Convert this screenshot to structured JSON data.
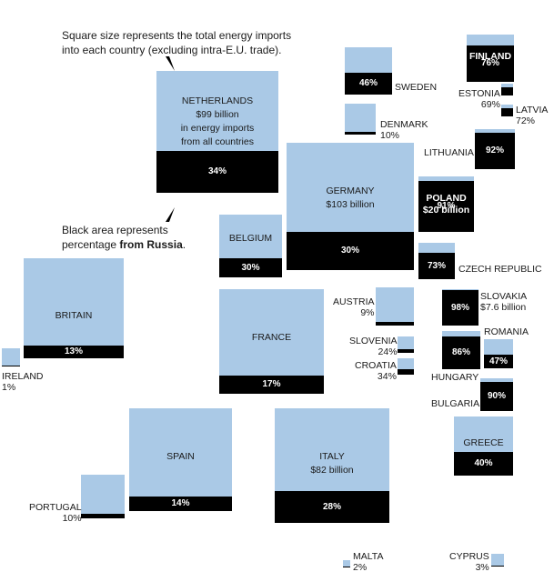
{
  "notes": {
    "size_note_line1": "Square size represents the total energy imports",
    "size_note_line2": "into each country (excluding intra-E.U. trade).",
    "black_note_line1": "Black area represents",
    "black_note_line2_a": "percentage ",
    "black_note_line2_b": "from Russia",
    "black_note_line2_c": "."
  },
  "colors": {
    "square": "#aac9e6",
    "russia": "#000000",
    "text": "#1a1a1a"
  },
  "chart_data": {
    "type": "proportional-squares",
    "size_measure": "total energy imports",
    "fill_measure": "percentage from Russia",
    "countries": [
      {
        "id": "netherlands",
        "name": "NETHERLANDS",
        "value_label": "$99 billion",
        "extra_line1": "in energy imports",
        "extra_line2": "from all countries",
        "pct": 34,
        "pct_label": "34%"
      },
      {
        "id": "germany",
        "name": "GERMANY",
        "value_label": "$103 billion",
        "pct": 30,
        "pct_label": "30%"
      },
      {
        "id": "italy",
        "name": "ITALY",
        "value_label": "$82 billion",
        "pct": 28,
        "pct_label": "28%"
      },
      {
        "id": "france",
        "name": "FRANCE",
        "pct": 17,
        "pct_label": "17%"
      },
      {
        "id": "spain",
        "name": "SPAIN",
        "pct": 14,
        "pct_label": "14%"
      },
      {
        "id": "britain",
        "name": "BRITAIN",
        "pct": 13,
        "pct_label": "13%"
      },
      {
        "id": "belgium",
        "name": "BELGIUM",
        "pct": 30,
        "pct_label": "30%"
      },
      {
        "id": "poland",
        "name": "POLAND",
        "value_label": "$20 billion",
        "pct": 91,
        "pct_label": "91%"
      },
      {
        "id": "sweden",
        "name": "SWEDEN",
        "pct": 46,
        "pct_label": "46%"
      },
      {
        "id": "finland",
        "name": "FINLAND",
        "pct": 76,
        "pct_label": "76%"
      },
      {
        "id": "lithuania",
        "name": "LITHUANIA",
        "pct": 92,
        "pct_label": "92%"
      },
      {
        "id": "czech",
        "name": "CZECH REPUBLIC",
        "pct": 73,
        "pct_label": "73%"
      },
      {
        "id": "slovakia",
        "name": "SLOVAKIA",
        "value_label": "$7.6 billion",
        "pct": 98,
        "pct_label": "98%"
      },
      {
        "id": "hungary",
        "name": "HUNGARY",
        "pct": 86,
        "pct_label": "86%"
      },
      {
        "id": "romania",
        "name": "ROMANIA",
        "pct": 47,
        "pct_label": "47%"
      },
      {
        "id": "bulgaria",
        "name": "BULGARIA",
        "pct": 90,
        "pct_label": "90%"
      },
      {
        "id": "greece",
        "name": "GREECE",
        "pct": 40,
        "pct_label": "40%"
      },
      {
        "id": "denmark",
        "name": "DENMARK",
        "pct": 10,
        "pct_label": "10%"
      },
      {
        "id": "estonia",
        "name": "ESTONIA",
        "pct": 69,
        "pct_label": "69%"
      },
      {
        "id": "latvia",
        "name": "LATVIA",
        "pct": 72,
        "pct_label": "72%"
      },
      {
        "id": "austria",
        "name": "AUSTRIA",
        "pct": 9,
        "pct_label": "9%"
      },
      {
        "id": "slovenia",
        "name": "SLOVENIA",
        "pct": 24,
        "pct_label": "24%"
      },
      {
        "id": "croatia",
        "name": "CROATIA",
        "pct": 34,
        "pct_label": "34%"
      },
      {
        "id": "portugal",
        "name": "PORTUGAL",
        "pct": 10,
        "pct_label": "10%"
      },
      {
        "id": "ireland",
        "name": "IRELAND",
        "pct": 1,
        "pct_label": "1%"
      },
      {
        "id": "malta",
        "name": "MALTA",
        "pct": 2,
        "pct_label": "2%"
      },
      {
        "id": "cyprus",
        "name": "CYPRUS",
        "pct": 3,
        "pct_label": "3%"
      }
    ]
  }
}
